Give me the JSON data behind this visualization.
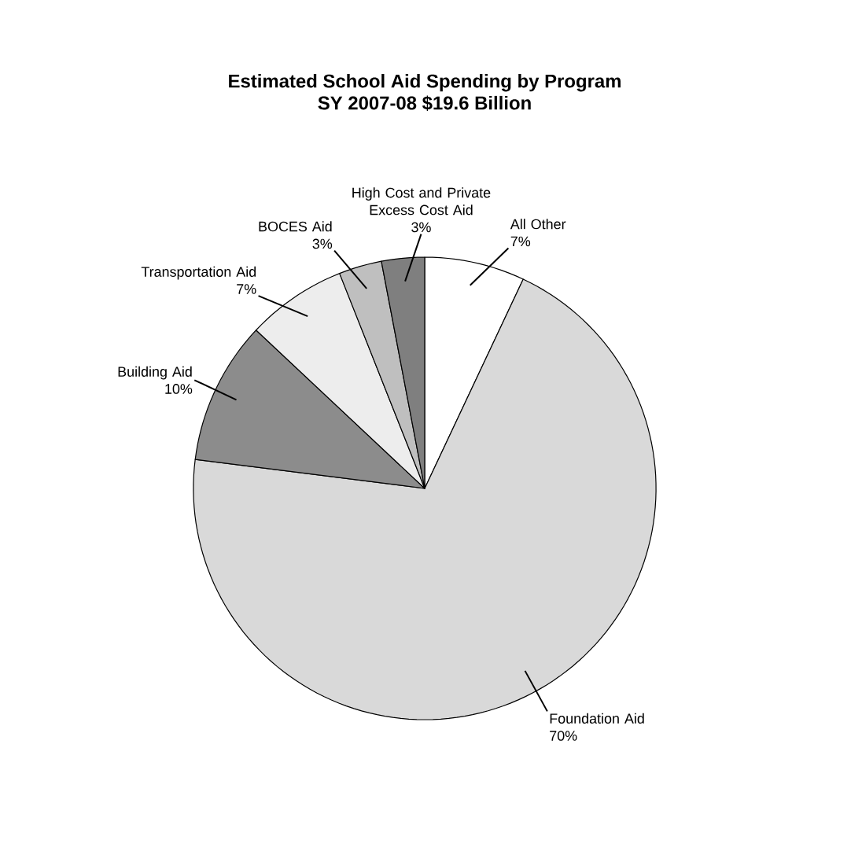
{
  "chart_data": {
    "type": "pie",
    "title": "Estimated School Aid Spending by Program\nSY 2007-08 $19.6 Billion",
    "categories": [
      "All Other",
      "Foundation Aid",
      "Building Aid",
      "Transportation Aid",
      "BOCES Aid",
      "High Cost and Private Excess Cost Aid"
    ],
    "values": [
      7,
      70,
      10,
      7,
      3,
      3
    ],
    "value_labels": [
      "7%",
      "70%",
      "10%",
      "7%",
      "3%",
      "3%"
    ],
    "colors": [
      "#ffffff",
      "#d9d9d9",
      "#8c8c8c",
      "#ededed",
      "#bfbfbf",
      "#7f7f7f"
    ]
  }
}
